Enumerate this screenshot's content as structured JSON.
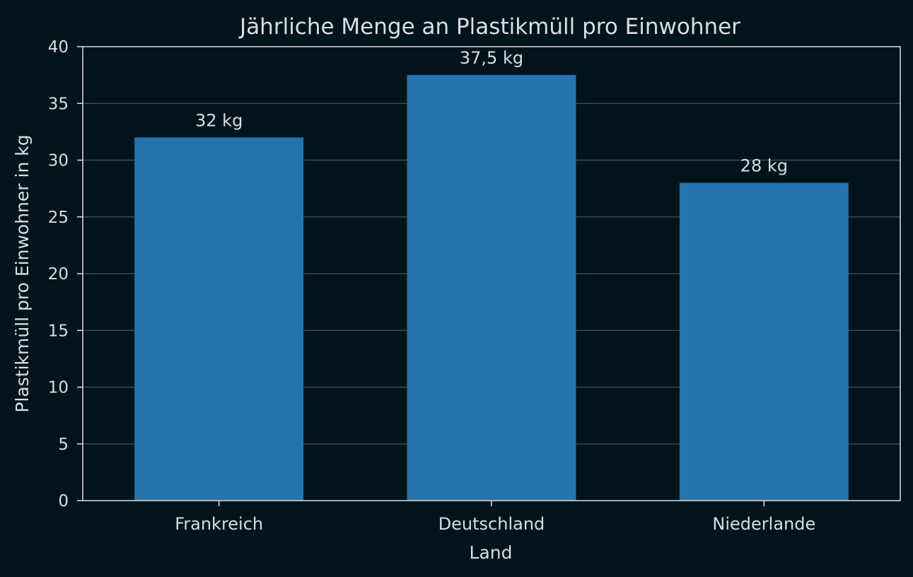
{
  "colors": {
    "background": "#02141b",
    "bar": "#2674ad",
    "text": "#d9dde0",
    "grid": "#3a4a50",
    "axis": "#d9dde0"
  },
  "chart_data": {
    "type": "bar",
    "title": "Jährliche Menge an Plastikmüll pro Einwohner",
    "xlabel": "Land",
    "ylabel": "Plastikmüll pro Einwohner in kg",
    "categories": [
      "Frankreich",
      "Deutschland",
      "Niederlande"
    ],
    "values": [
      32,
      37.5,
      28
    ],
    "data_labels": [
      "32 kg",
      "37,5 kg",
      "28 kg"
    ],
    "ylim": [
      0,
      40
    ],
    "yticks": [
      0,
      5,
      10,
      15,
      20,
      25,
      30,
      35,
      40
    ],
    "grid": "horizontal",
    "legend": "none"
  }
}
